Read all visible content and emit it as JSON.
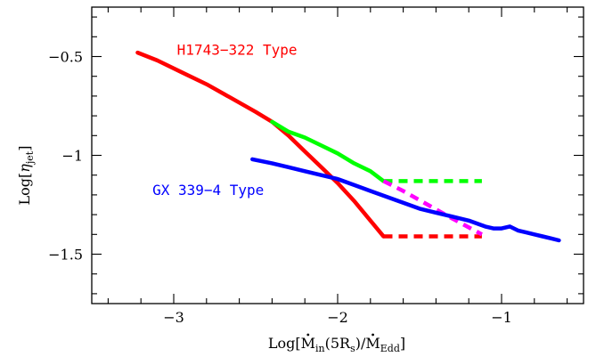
{
  "chart_data": {
    "type": "line",
    "xlim": [
      -3.5,
      -0.5
    ],
    "ylim": [
      -1.75,
      -0.25
    ],
    "x_ticks": [
      {
        "value": -3,
        "label": "−3"
      },
      {
        "value": -2,
        "label": "−2"
      },
      {
        "value": -1,
        "label": "−1"
      }
    ],
    "y_ticks": [
      {
        "value": -0.5,
        "label": "−0.5"
      },
      {
        "value": -1,
        "label": "−1"
      },
      {
        "value": -1.5,
        "label": "−1.5"
      }
    ],
    "x_minor_step": 0.2,
    "y_minor_step": 0.1,
    "xlabel": {
      "main": "Log[",
      "mdot": "M",
      "in_sub": "in",
      "paren": "(5R",
      "s_sub": "s",
      "close": ")/",
      "edd_sub": "Edd",
      "end": "]"
    },
    "ylabel": {
      "main": "Log[",
      "eta": "η",
      "jet_sub": "jet",
      "end": "]"
    },
    "annotations": [
      {
        "text": "H1743−322 Type",
        "x": -2.98,
        "y": -0.49,
        "color": "#ff0000"
      },
      {
        "text": "GX 339−4 Type",
        "x": -3.13,
        "y": -1.2,
        "color": "#0000ff"
      }
    ],
    "series": [
      {
        "color": "#ff0000",
        "dash": false,
        "x": [
          -3.22,
          -3.1,
          -2.95,
          -2.8,
          -2.65,
          -2.5,
          -2.4,
          -2.3,
          -2.2,
          -2.1,
          -2.0,
          -1.9,
          -1.8,
          -1.72
        ],
        "y": [
          -0.48,
          -0.52,
          -0.58,
          -0.64,
          -0.71,
          -0.78,
          -0.83,
          -0.9,
          -0.98,
          -1.06,
          -1.14,
          -1.23,
          -1.33,
          -1.41
        ]
      },
      {
        "color": "#ff0000",
        "dash": true,
        "x": [
          -1.72,
          -1.12
        ],
        "y": [
          -1.41,
          -1.41
        ]
      },
      {
        "color": "#00ff00",
        "dash": false,
        "x": [
          -2.4,
          -2.3,
          -2.2,
          -2.1,
          -2.0,
          -1.9,
          -1.8,
          -1.72
        ],
        "y": [
          -0.83,
          -0.88,
          -0.91,
          -0.95,
          -0.99,
          -1.04,
          -1.08,
          -1.13
        ]
      },
      {
        "color": "#00ff00",
        "dash": true,
        "x": [
          -1.72,
          -1.12
        ],
        "y": [
          -1.13,
          -1.13
        ]
      },
      {
        "color": "#ff00ff",
        "dash": true,
        "x": [
          -1.72,
          -1.6,
          -1.45,
          -1.3,
          -1.12
        ],
        "y": [
          -1.13,
          -1.18,
          -1.25,
          -1.32,
          -1.4
        ]
      },
      {
        "color": "#0000ff",
        "dash": false,
        "x": [
          -2.52,
          -2.4,
          -2.3,
          -2.2,
          -2.1,
          -2.0,
          -1.9,
          -1.8,
          -1.7,
          -1.6,
          -1.5,
          -1.4,
          -1.3,
          -1.2,
          -1.1,
          -1.05,
          -1.0,
          -0.95,
          -0.9,
          -0.85,
          -0.8,
          -0.75,
          -0.7,
          -0.65
        ],
        "y": [
          -1.02,
          -1.04,
          -1.06,
          -1.08,
          -1.1,
          -1.12,
          -1.15,
          -1.18,
          -1.21,
          -1.24,
          -1.27,
          -1.29,
          -1.31,
          -1.33,
          -1.36,
          -1.37,
          -1.37,
          -1.36,
          -1.38,
          -1.39,
          -1.4,
          -1.41,
          -1.42,
          -1.43
        ]
      }
    ]
  }
}
